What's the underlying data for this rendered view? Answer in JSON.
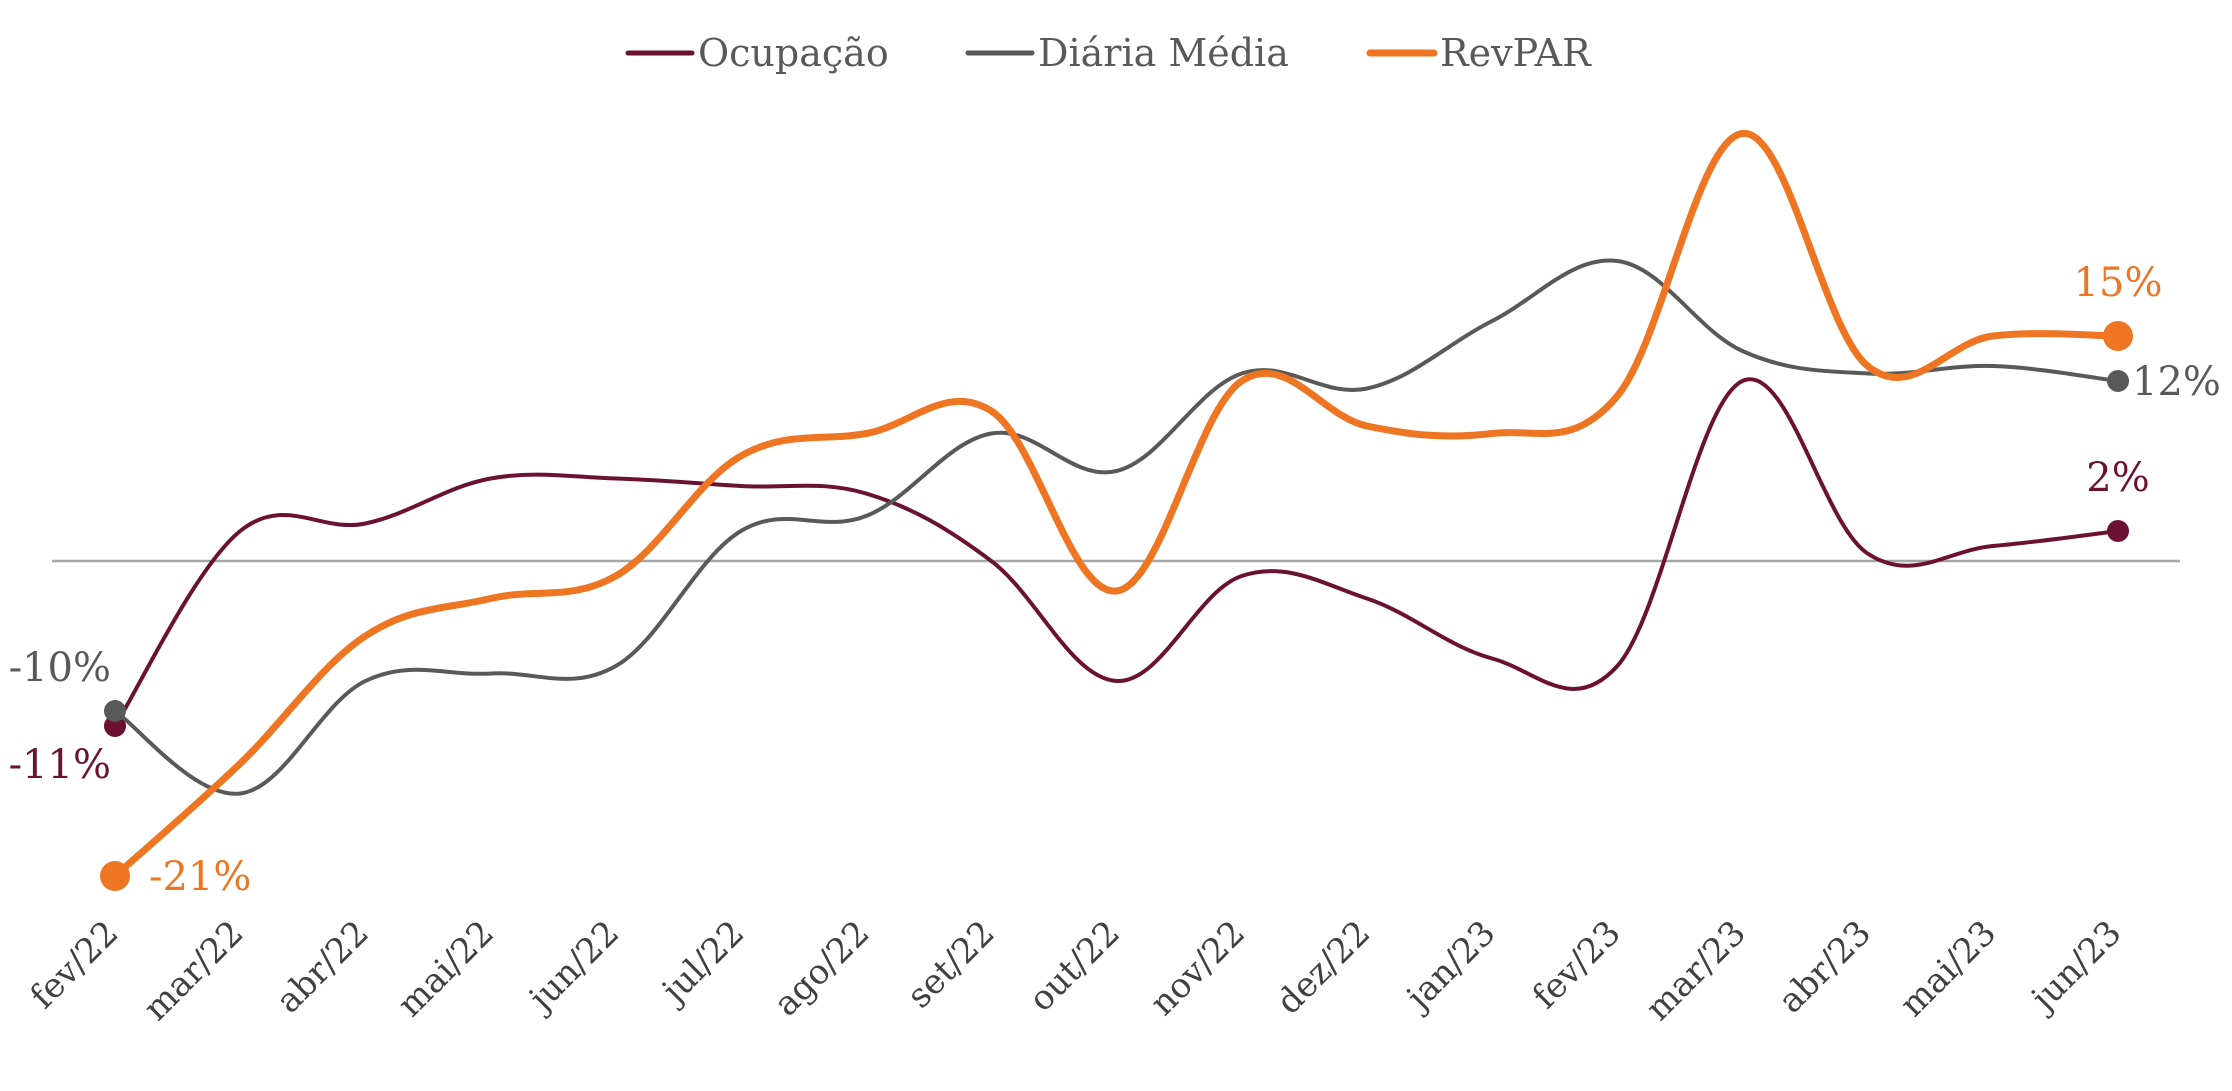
{
  "chart_data": {
    "type": "line",
    "title": "",
    "xlabel": "",
    "ylabel": "",
    "ylim": [
      -30,
      30
    ],
    "categories": [
      "fev/22",
      "mar/22",
      "abr/22",
      "mai/22",
      "jun/22",
      "jul/22",
      "ago/22",
      "set/22",
      "out/22",
      "nov/22",
      "dez/22",
      "jan/23",
      "fev/23",
      "mar/23",
      "abr/23",
      "mai/23",
      "jun/23"
    ],
    "legend_position": "top-center",
    "series": [
      {
        "name": "Ocupação",
        "color": "#6B1233",
        "values": [
          -11,
          2,
          2.5,
          5.5,
          5.5,
          5,
          4.5,
          0,
          -8,
          -1,
          -2.5,
          -6.5,
          -7,
          12,
          0.5,
          1,
          2
        ],
        "labels": [
          {
            "index": 0,
            "text": "-11%"
          },
          {
            "index": 16,
            "text": "2%"
          }
        ]
      },
      {
        "name": "Diária Média",
        "color": "#595959",
        "values": [
          -10,
          -15.5,
          -8,
          -7.5,
          -7,
          2,
          3,
          8.5,
          6,
          12.5,
          11.5,
          16,
          20,
          14,
          12.5,
          13,
          12
        ],
        "labels": [
          {
            "index": 0,
            "text": "-10%"
          },
          {
            "index": 16,
            "text": "12%"
          }
        ]
      },
      {
        "name": "RevPAR",
        "color": "#EE7622",
        "values": [
          -21,
          -13.5,
          -5,
          -2.5,
          -1,
          7,
          8.5,
          10,
          -2,
          12,
          9,
          8.5,
          11,
          28.5,
          13,
          15,
          15
        ],
        "labels": [
          {
            "index": 0,
            "text": "-21%"
          },
          {
            "index": 16,
            "text": "15%"
          }
        ]
      }
    ]
  }
}
